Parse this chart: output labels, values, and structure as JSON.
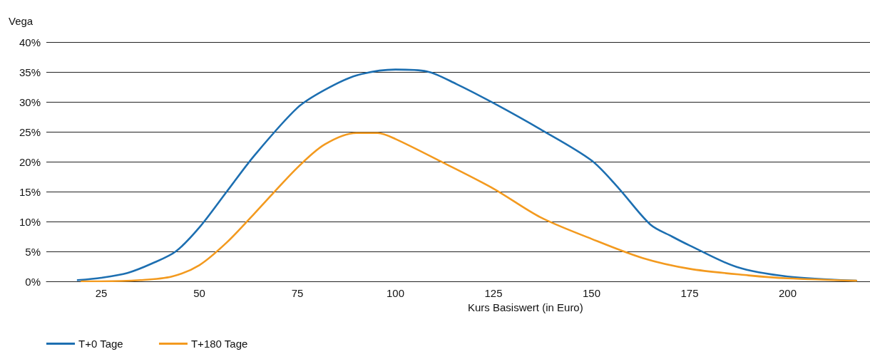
{
  "chart_data": {
    "type": "line",
    "ylabel": "Vega",
    "xlabel": "Kurs Basiswert (in Euro)",
    "xlim": [
      11,
      221
    ],
    "xticks": [
      25,
      50,
      75,
      100,
      125,
      150,
      175,
      200
    ],
    "ylim": [
      0,
      40
    ],
    "yticks": [
      {
        "value": 0,
        "label": "0%"
      },
      {
        "value": 5,
        "label": "5%"
      },
      {
        "value": 10,
        "label": "10%"
      },
      {
        "value": 15,
        "label": "15%"
      },
      {
        "value": 20,
        "label": "20%"
      },
      {
        "value": 25,
        "label": "25%"
      },
      {
        "value": 30,
        "label": "30%"
      },
      {
        "value": 35,
        "label": "35%"
      },
      {
        "value": 40,
        "label": "40%"
      }
    ],
    "grid": "y",
    "legend": "bottom left",
    "marker": "none",
    "line_style": "solid",
    "series": [
      {
        "name": "T+0 Tage",
        "color": "#1d6fb1",
        "x": [
          19,
          25,
          31.7,
          38,
          44,
          50,
          57,
          64,
          75,
          82,
          90,
          100,
          108,
          115.5,
          125,
          137,
          150,
          157,
          165,
          170.5,
          175,
          187,
          200,
          217.5
        ],
        "values": [
          0.2,
          0.6,
          1.4,
          3,
          5,
          9,
          15,
          21,
          29,
          32,
          34.4,
          35.4,
          35.1,
          33,
          29.8,
          25.4,
          20.2,
          15.5,
          9.5,
          7.5,
          6,
          2.4,
          0.8,
          0.1
        ]
      },
      {
        "name": "T+180 Tage",
        "color": "#f39a1f",
        "x": [
          20,
          25,
          35,
          43,
          50,
          57,
          64,
          75,
          82,
          90,
          95.5,
          100,
          112,
          125,
          137,
          150,
          163,
          175,
          190,
          200,
          217.5
        ],
        "values": [
          0,
          0,
          0.2,
          0.8,
          2.7,
          6.5,
          11.3,
          19,
          22.9,
          24.8,
          24.8,
          23.8,
          19.9,
          15.5,
          10.7,
          7.1,
          3.9,
          2.1,
          1,
          0.5,
          0.1
        ]
      }
    ]
  }
}
